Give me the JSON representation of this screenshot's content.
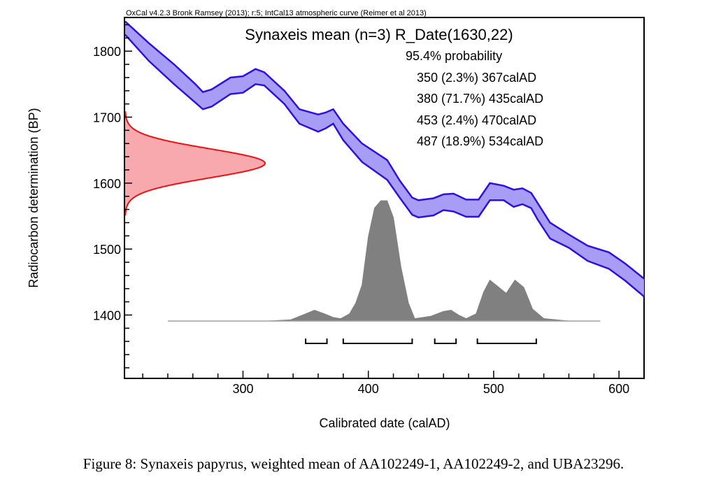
{
  "chart_data": {
    "type": "area",
    "header": "OxCal v4.2.3 Bronk Ramsey (2013); r:5; IntCal13 atmospheric curve (Reimer et al 2013)",
    "title": "Synaxeis mean (n=3) R_Date(1630,22)",
    "xlabel": "Calibrated date (calAD)",
    "ylabel": "Radiocarbon determination (BP)",
    "xlim": [
      206,
      620
    ],
    "ylim": [
      1305,
      1850
    ],
    "xticks": [
      300,
      400,
      500,
      600
    ],
    "yticks": [
      1400,
      1500,
      1600,
      1700,
      1800
    ],
    "probability_label": "95.4% probability",
    "ranges": [
      {
        "from": 350,
        "to": 367,
        "label": "350 (2.3%) 367calAD"
      },
      {
        "from": 380,
        "to": 435,
        "label": "380 (71.7%) 435calAD"
      },
      {
        "from": 453,
        "to": 470,
        "label": "453 (2.4%) 470calAD"
      },
      {
        "from": 487,
        "to": 534,
        "label": "487 (18.9%) 534calAD"
      }
    ],
    "radiocarbon_date": {
      "mean": 1630,
      "sd": 22
    },
    "calibration_curve": {
      "name": "IntCal13",
      "x": [
        206,
        225,
        245,
        262,
        268,
        275,
        290,
        300,
        310,
        317,
        333,
        345,
        360,
        366,
        372,
        380,
        395,
        415,
        425,
        435,
        440,
        452,
        460,
        468,
        478,
        488,
        497,
        508,
        516,
        523,
        530,
        535,
        545,
        560,
        575,
        592,
        605,
        620
      ],
      "upper": [
        1845,
        1812,
        1780,
        1750,
        1738,
        1742,
        1760,
        1762,
        1773,
        1768,
        1740,
        1712,
        1704,
        1707,
        1712,
        1690,
        1660,
        1635,
        1604,
        1578,
        1574,
        1577,
        1583,
        1584,
        1575,
        1575,
        1600,
        1596,
        1590,
        1592,
        1585,
        1570,
        1540,
        1522,
        1505,
        1495,
        1478,
        1455
      ],
      "lower": [
        1825,
        1785,
        1750,
        1722,
        1712,
        1716,
        1735,
        1737,
        1750,
        1748,
        1720,
        1690,
        1678,
        1683,
        1690,
        1665,
        1632,
        1605,
        1578,
        1552,
        1548,
        1551,
        1559,
        1557,
        1549,
        1549,
        1574,
        1574,
        1564,
        1568,
        1562,
        1545,
        1516,
        1502,
        1482,
        1470,
        1452,
        1428
      ]
    },
    "posterior": {
      "x": [
        240,
        320,
        338,
        350,
        357,
        365,
        372,
        378,
        385,
        390,
        395,
        400,
        405,
        410,
        415,
        420,
        426,
        432,
        437,
        450,
        460,
        466,
        472,
        478,
        486,
        492,
        497,
        503,
        510,
        517,
        524,
        531,
        540,
        560,
        585
      ],
      "y": [
        0,
        0,
        0.01,
        0.06,
        0.09,
        0.06,
        0.03,
        0.02,
        0.06,
        0.15,
        0.3,
        0.7,
        0.94,
        1.0,
        1.0,
        0.86,
        0.45,
        0.15,
        0.02,
        0.04,
        0.08,
        0.09,
        0.05,
        0.02,
        0.06,
        0.24,
        0.34,
        0.29,
        0.23,
        0.34,
        0.28,
        0.1,
        0.02,
        0,
        0
      ]
    }
  },
  "caption": "Figure 8: Synaxeis papyrus, weighted mean of AA102249-1, AA102249-2, and UBA23296."
}
